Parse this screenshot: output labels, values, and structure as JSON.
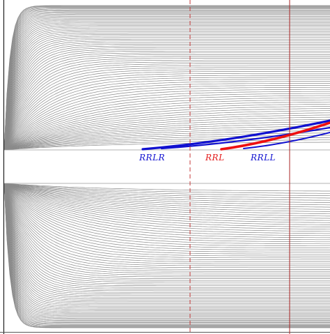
{
  "colors": {
    "background": "#ffffff",
    "curves": "#8a8a8a",
    "axis": "#000000",
    "frame": "#555555",
    "dashed_line": "#c43a3a",
    "solid_line": "#a82424",
    "blue": "#1010d0",
    "red": "#ee1010"
  },
  "labels": [
    {
      "id": "RRLR",
      "text": "RRLR",
      "color": "#1010d0"
    },
    {
      "id": "RRL",
      "text": "RRL",
      "color": "#e31a1a"
    },
    {
      "id": "RRLL",
      "text": "RRLL",
      "color": "#1010d0"
    }
  ]
}
